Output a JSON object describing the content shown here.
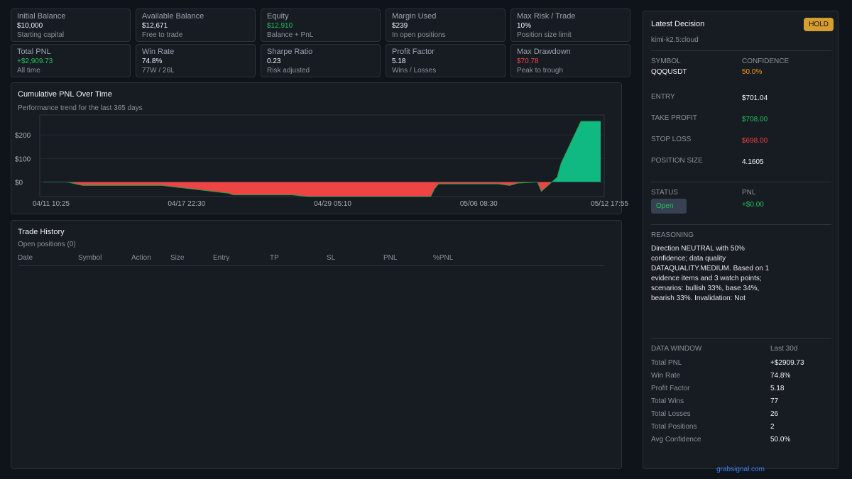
{
  "stats": [
    {
      "label": "Initial Balance",
      "value": "$10,000",
      "sub": "Starting capital",
      "tone": "white"
    },
    {
      "label": "Available Balance",
      "value": "$12,671",
      "sub": "Free to trade",
      "tone": "white"
    },
    {
      "label": "Equity",
      "value": "$12,910",
      "sub": "Balance + PnL",
      "tone": "green"
    },
    {
      "label": "Margin Used",
      "value": "$239",
      "sub": "In open positions",
      "tone": "white"
    },
    {
      "label": "Max Risk / Trade",
      "value": "10%",
      "sub": "Position size limit",
      "tone": "white"
    },
    {
      "label": "Total PNL",
      "value": "+$2,909.73",
      "sub": "All time",
      "tone": "green"
    },
    {
      "label": "Win Rate",
      "value": "74.8%",
      "sub": "77W / 26L",
      "tone": "white"
    },
    {
      "label": "Sharpe Ratio",
      "value": "0.23",
      "sub": "Risk adjusted",
      "tone": "white"
    },
    {
      "label": "Profit Factor",
      "value": "5.18",
      "sub": "Wins / Losses",
      "tone": "white"
    },
    {
      "label": "Max Drawdown",
      "value": "$70.78",
      "sub": "Peak to trough",
      "tone": "red"
    }
  ],
  "chart": {
    "title": "Cumulative PNL Over Time",
    "subtitle": "Performance trend for the last 365 days"
  },
  "chart_data": {
    "type": "area",
    "title": "Cumulative PNL Over Time",
    "subtitle": "Performance trend for the last 365 days",
    "y_ticks": [
      "$200",
      "$100",
      "$0"
    ],
    "y_tick_values": [
      200,
      100,
      0
    ],
    "x_ticks": [
      "04/11 10:25",
      "04/17 22:30",
      "04/29 05:10",
      "05/06 08:30",
      "05/12 17:55"
    ],
    "ylim": [
      -62,
      285
    ],
    "x_index": [
      0,
      5,
      6,
      10,
      29,
      30,
      47,
      48,
      63,
      67,
      68,
      92,
      93,
      98,
      99,
      100,
      107,
      108,
      110,
      111,
      113,
      115,
      118,
      120,
      125,
      126,
      130,
      131,
      136,
      139,
      140,
      141
    ],
    "values": [
      0,
      0,
      0,
      -15,
      -15,
      -15,
      -48,
      -55,
      -55,
      -62,
      -62,
      -62,
      -62,
      -62,
      -28,
      -8,
      -8,
      -8,
      -8,
      -8,
      -8,
      -8,
      -15,
      -5,
      0,
      -40,
      20,
      80,
      258,
      258,
      258,
      258
    ],
    "grid": true,
    "positive_color": "#10b981",
    "negative_color": "#ef4444"
  },
  "trades": {
    "title": "Trade History",
    "subtitle": "Open positions (0)",
    "columns": [
      "Date",
      "Symbol",
      "Action",
      "Size",
      "Entry",
      "TP",
      "SL",
      "PNL",
      "%PNL"
    ]
  },
  "decision": {
    "title": "Latest Decision",
    "model": "kimi-k2.5:cloud",
    "action": "HOLD",
    "symbol_label": "SYMBOL",
    "symbol": "QQQUSDT",
    "confidence_label": "CONFIDENCE",
    "confidence": "50.0%",
    "entry_label": "ENTRY",
    "entry": "$701.04",
    "tp_label": "TAKE PROFIT",
    "tp": "$708.00",
    "sl_label": "STOP LOSS",
    "sl": "$698.00",
    "size_label": "POSITION SIZE",
    "size": "4.1605",
    "status_label": "STATUS",
    "status": "Open",
    "pnl_label": "PNL",
    "pnl": "+$0.00",
    "reasoning_label": "REASONING",
    "reasoning": "Direction NEUTRAL with 50% confidence; data quality DATAQUALITY.MEDIUM. Based on 1 evidence items and 3 watch points; scenarios: bullish 33%, base 34%, bearish 33%. Invalidation: Not",
    "window_label": "DATA WINDOW",
    "window": "Last 30d",
    "metrics": [
      {
        "label": "Total PNL",
        "value": "+$2909.73"
      },
      {
        "label": "Win Rate",
        "value": "74.8%"
      },
      {
        "label": "Profit Factor",
        "value": "5.18"
      },
      {
        "label": "Total Wins",
        "value": "77"
      },
      {
        "label": "Total Losses",
        "value": "26"
      },
      {
        "label": "Total Positions",
        "value": "2"
      },
      {
        "label": "Avg Confidence",
        "value": "50.0%"
      }
    ],
    "footer": "grabsignal.com"
  }
}
